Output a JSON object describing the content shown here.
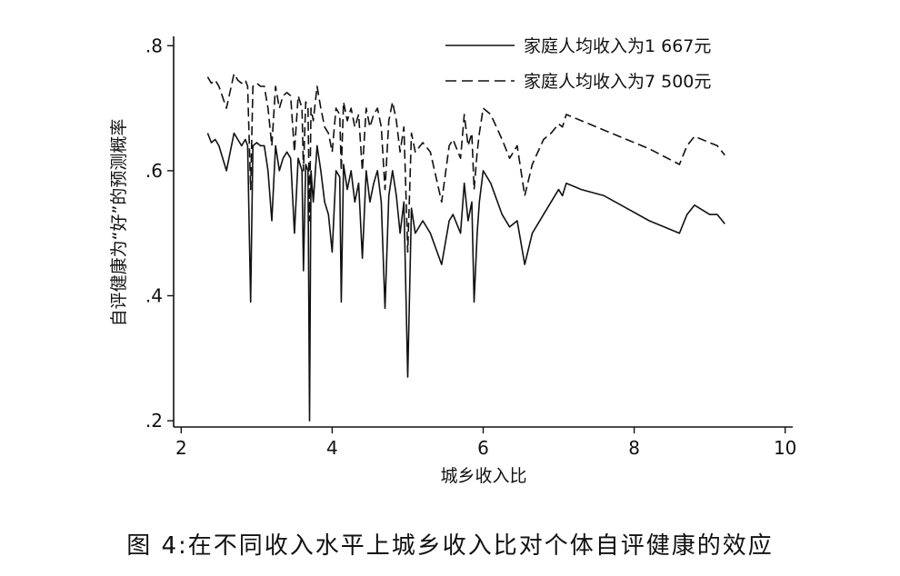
{
  "caption": "图 4:在不同收入水平上城乡收入比对个体自评健康的效应",
  "chart_data": {
    "type": "line",
    "title": "",
    "xlabel": "城乡收入比",
    "ylabel": "自评健康为“好”的预测概率",
    "xlim": [
      1.9,
      10.1
    ],
    "ylim": [
      0.19,
      0.815
    ],
    "x_ticks": [
      2,
      4,
      6,
      8,
      10
    ],
    "x_tick_labels": [
      "2",
      "4",
      "6",
      "8",
      "10"
    ],
    "y_ticks": [
      0.2,
      0.4,
      0.6,
      0.8
    ],
    "y_tick_labels": [
      ".2",
      ".4",
      ".6",
      ".8"
    ],
    "grid": false,
    "legend_position": "top-right",
    "series": [
      {
        "name": "家庭人均收入为1 667元",
        "style": "solid",
        "color": "#111111",
        "x": [
          2.35,
          2.4,
          2.45,
          2.5,
          2.6,
          2.7,
          2.75,
          2.8,
          2.85,
          2.88,
          2.92,
          2.95,
          3.0,
          3.05,
          3.1,
          3.15,
          3.2,
          3.25,
          3.3,
          3.35,
          3.4,
          3.45,
          3.5,
          3.55,
          3.6,
          3.62,
          3.65,
          3.68,
          3.7,
          3.72,
          3.75,
          3.8,
          3.85,
          3.9,
          3.95,
          4.0,
          4.05,
          4.1,
          4.12,
          4.15,
          4.2,
          4.25,
          4.3,
          4.35,
          4.4,
          4.45,
          4.5,
          4.55,
          4.6,
          4.65,
          4.7,
          4.75,
          4.8,
          4.85,
          4.9,
          4.95,
          5.0,
          5.05,
          5.1,
          5.2,
          5.3,
          5.45,
          5.55,
          5.6,
          5.7,
          5.75,
          5.8,
          5.85,
          5.88,
          5.92,
          5.95,
          6.0,
          6.1,
          6.25,
          6.35,
          6.45,
          6.55,
          6.65,
          6.8,
          6.9,
          7.0,
          7.05,
          7.1,
          7.3,
          7.6,
          7.9,
          8.2,
          8.6,
          8.7,
          8.8,
          9.0,
          9.1,
          9.2
        ],
        "y": [
          0.66,
          0.645,
          0.65,
          0.64,
          0.6,
          0.66,
          0.65,
          0.64,
          0.65,
          0.64,
          0.39,
          0.64,
          0.645,
          0.64,
          0.64,
          0.6,
          0.52,
          0.64,
          0.6,
          0.62,
          0.63,
          0.62,
          0.5,
          0.62,
          0.6,
          0.44,
          0.61,
          0.6,
          0.2,
          0.6,
          0.55,
          0.64,
          0.6,
          0.55,
          0.53,
          0.47,
          0.6,
          0.59,
          0.39,
          0.61,
          0.57,
          0.6,
          0.55,
          0.58,
          0.46,
          0.6,
          0.55,
          0.58,
          0.6,
          0.55,
          0.38,
          0.56,
          0.6,
          0.56,
          0.5,
          0.55,
          0.27,
          0.54,
          0.5,
          0.52,
          0.5,
          0.45,
          0.52,
          0.53,
          0.5,
          0.58,
          0.52,
          0.55,
          0.39,
          0.5,
          0.55,
          0.6,
          0.58,
          0.53,
          0.51,
          0.52,
          0.45,
          0.5,
          0.53,
          0.55,
          0.57,
          0.56,
          0.58,
          0.57,
          0.56,
          0.54,
          0.52,
          0.5,
          0.53,
          0.545,
          0.53,
          0.53,
          0.515
        ]
      },
      {
        "name": "家庭人均收入为7 500元",
        "style": "dashed",
        "color": "#111111",
        "x": [
          2.35,
          2.4,
          2.45,
          2.5,
          2.6,
          2.7,
          2.75,
          2.8,
          2.85,
          2.88,
          2.92,
          2.95,
          3.0,
          3.05,
          3.1,
          3.15,
          3.2,
          3.25,
          3.3,
          3.35,
          3.4,
          3.45,
          3.5,
          3.55,
          3.6,
          3.62,
          3.65,
          3.68,
          3.7,
          3.72,
          3.75,
          3.8,
          3.85,
          3.9,
          3.95,
          4.0,
          4.05,
          4.1,
          4.12,
          4.15,
          4.2,
          4.25,
          4.3,
          4.35,
          4.4,
          4.45,
          4.5,
          4.55,
          4.6,
          4.65,
          4.7,
          4.75,
          4.8,
          4.85,
          4.9,
          4.95,
          5.0,
          5.05,
          5.1,
          5.2,
          5.3,
          5.45,
          5.55,
          5.6,
          5.7,
          5.75,
          5.8,
          5.85,
          5.88,
          5.92,
          5.95,
          6.0,
          6.1,
          6.25,
          6.35,
          6.45,
          6.55,
          6.65,
          6.8,
          6.9,
          7.0,
          7.05,
          7.1,
          7.3,
          7.6,
          7.9,
          8.2,
          8.6,
          8.7,
          8.8,
          9.0,
          9.1,
          9.2
        ],
        "y": [
          0.75,
          0.74,
          0.745,
          0.735,
          0.7,
          0.755,
          0.745,
          0.74,
          0.745,
          0.735,
          0.57,
          0.735,
          0.74,
          0.735,
          0.735,
          0.7,
          0.64,
          0.735,
          0.7,
          0.72,
          0.725,
          0.72,
          0.63,
          0.72,
          0.7,
          0.6,
          0.71,
          0.7,
          0.52,
          0.7,
          0.68,
          0.735,
          0.7,
          0.67,
          0.66,
          0.63,
          0.7,
          0.69,
          0.6,
          0.71,
          0.68,
          0.7,
          0.67,
          0.69,
          0.6,
          0.7,
          0.67,
          0.69,
          0.7,
          0.67,
          0.57,
          0.68,
          0.71,
          0.68,
          0.63,
          0.67,
          0.47,
          0.66,
          0.63,
          0.645,
          0.63,
          0.55,
          0.64,
          0.65,
          0.62,
          0.69,
          0.64,
          0.66,
          0.57,
          0.63,
          0.66,
          0.7,
          0.69,
          0.65,
          0.62,
          0.64,
          0.56,
          0.61,
          0.65,
          0.66,
          0.675,
          0.67,
          0.69,
          0.68,
          0.665,
          0.65,
          0.635,
          0.61,
          0.64,
          0.655,
          0.645,
          0.64,
          0.625
        ]
      }
    ]
  }
}
